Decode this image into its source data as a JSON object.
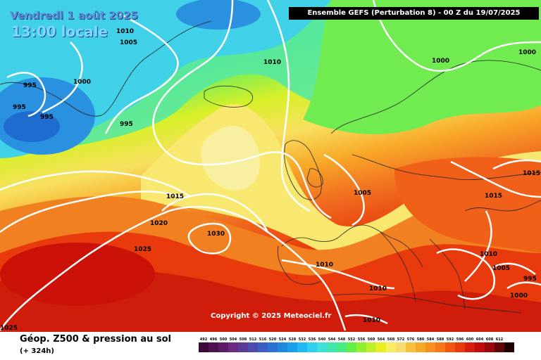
{
  "header": {
    "date": "Vendredi 1 août 2025",
    "time": "13:00 locale",
    "banner": "Ensemble GEFS  (Perturbation 8)  -  00 Z du 19/07/2025"
  },
  "map": {
    "copyright": "Copyright © 2025 Meteociel.fr",
    "isobar_labels": [
      "1010",
      "1005",
      "995",
      "995",
      "995",
      "1000",
      "995",
      "1010",
      "1000",
      "1000",
      "1015",
      "1020",
      "1030",
      "1025",
      "1005",
      "1015",
      "1015",
      "1010",
      "1010",
      "1005",
      "995",
      "1000",
      "1010",
      "1010",
      "1025"
    ]
  },
  "legend": {
    "title": "Géop. Z500 & pression au sol",
    "subtitle": "(+ 324h)",
    "scale": [
      {
        "label": "492",
        "color": "#3a0a3a"
      },
      {
        "label": "496",
        "color": "#4c1250"
      },
      {
        "label": "500",
        "color": "#5e1a66"
      },
      {
        "label": "504",
        "color": "#6a2a80"
      },
      {
        "label": "508",
        "color": "#5a3a98"
      },
      {
        "label": "512",
        "color": "#4a4cb0"
      },
      {
        "label": "516",
        "color": "#3a5ec4"
      },
      {
        "label": "520",
        "color": "#2a72d4"
      },
      {
        "label": "524",
        "color": "#1e88e0"
      },
      {
        "label": "528",
        "color": "#1aa0ea"
      },
      {
        "label": "532",
        "color": "#20b8f0"
      },
      {
        "label": "536",
        "color": "#30d0f0"
      },
      {
        "label": "540",
        "color": "#40e0d8"
      },
      {
        "label": "544",
        "color": "#40e8b0"
      },
      {
        "label": "548",
        "color": "#48ec80"
      },
      {
        "label": "552",
        "color": "#60f048"
      },
      {
        "label": "556",
        "color": "#90f030"
      },
      {
        "label": "560",
        "color": "#c0f028"
      },
      {
        "label": "564",
        "color": "#e8f020"
      },
      {
        "label": "568",
        "color": "#f8ee60"
      },
      {
        "label": "572",
        "color": "#f8dc70"
      },
      {
        "label": "576",
        "color": "#f8c040"
      },
      {
        "label": "580",
        "color": "#f8a828"
      },
      {
        "label": "584",
        "color": "#f89020"
      },
      {
        "label": "588",
        "color": "#f87818"
      },
      {
        "label": "592",
        "color": "#f05810"
      },
      {
        "label": "596",
        "color": "#e83a0c"
      },
      {
        "label": "600",
        "color": "#d81e0a"
      },
      {
        "label": "604",
        "color": "#c00c0c"
      },
      {
        "label": "608",
        "color": "#980808"
      },
      {
        "label": "612",
        "color": "#600606"
      },
      {
        "label": "",
        "color": "#200000"
      }
    ]
  }
}
